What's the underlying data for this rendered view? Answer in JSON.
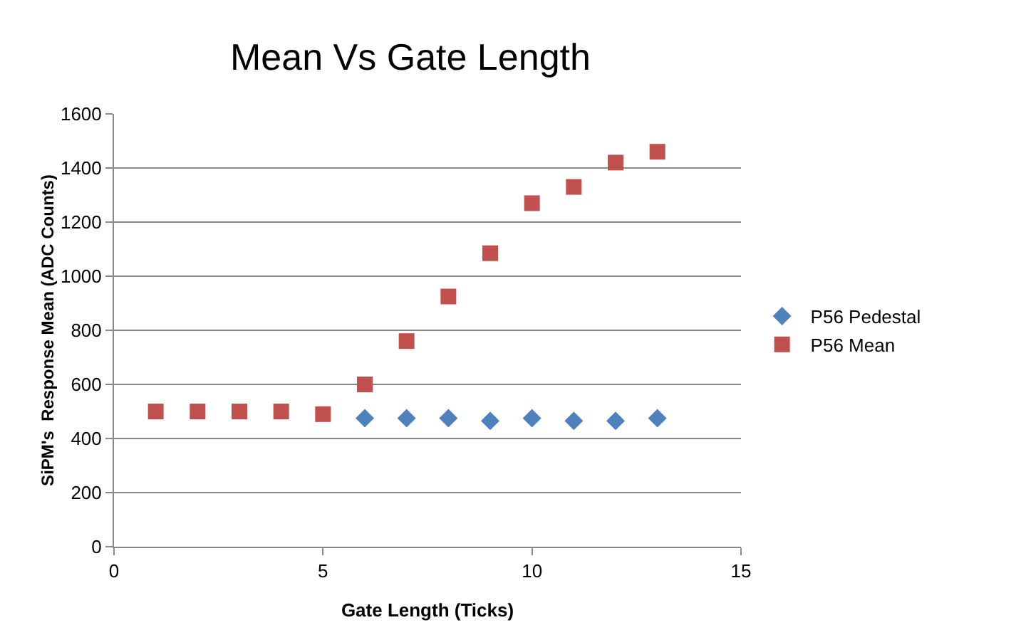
{
  "chart_data": {
    "type": "scatter",
    "title": "Mean Vs Gate Length",
    "xlabel": "Gate Length (Ticks)",
    "ylabel": "SiPM's  Response Mean (ADC Counts)",
    "x": [
      1,
      2,
      3,
      4,
      5,
      6,
      7,
      8,
      9,
      10,
      11,
      12,
      13
    ],
    "series": [
      {
        "name": "P56 Pedestal",
        "color": "#4f81bd",
        "marker": "diamond",
        "values": [
          null,
          null,
          null,
          null,
          null,
          475,
          475,
          475,
          465,
          475,
          465,
          465,
          475
        ]
      },
      {
        "name": "P56 Mean",
        "color": "#c0504d",
        "marker": "square",
        "values": [
          500,
          500,
          500,
          500,
          490,
          600,
          760,
          925,
          1085,
          1270,
          1330,
          1420,
          1460
        ]
      }
    ],
    "xlim": [
      0,
      15
    ],
    "xticks": [
      0,
      5,
      10,
      15
    ],
    "ylim": [
      0,
      1600
    ],
    "yticks": [
      0,
      200,
      400,
      600,
      800,
      1000,
      1200,
      1400,
      1600
    ],
    "grid": "y",
    "legend": "right"
  }
}
